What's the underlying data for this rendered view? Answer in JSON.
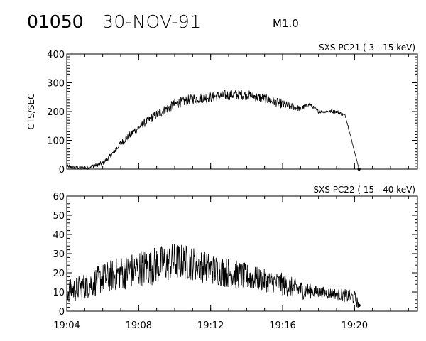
{
  "header": {
    "event_id": "01050",
    "date": "30-NOV-91",
    "flare_class": "M1.0"
  },
  "chart_data": [
    {
      "type": "line",
      "title": "SXS PC21  (  3 - 15 keV)",
      "ylabel": "CTS/SEC",
      "xlabel": "",
      "ylim": [
        0,
        400
      ],
      "yticks": [
        0,
        100,
        200,
        300,
        400
      ],
      "xlim": [
        "19:04",
        "19:23:30"
      ],
      "xticks": [
        "19:04",
        "19:08",
        "19:12",
        "19:16",
        "19:20"
      ],
      "grid": false,
      "series": [
        {
          "x": [
            "19:04",
            "19:05",
            "19:06",
            "19:06:30",
            "19:07",
            "19:08",
            "19:09",
            "19:10",
            "19:11",
            "19:12",
            "19:13",
            "19:14",
            "19:15",
            "19:16",
            "19:17",
            "19:17:30",
            "19:18",
            "19:19",
            "19:19:30",
            "19:20",
            "19:20:15"
          ],
          "values": [
            8,
            3,
            20,
            50,
            90,
            145,
            190,
            225,
            245,
            250,
            258,
            258,
            245,
            225,
            210,
            225,
            200,
            200,
            185,
            60,
            0
          ],
          "noise": [
            8,
            6,
            8,
            10,
            12,
            14,
            16,
            18,
            18,
            18,
            18,
            18,
            16,
            16,
            10,
            6,
            6,
            6,
            6,
            0,
            0
          ]
        }
      ]
    },
    {
      "type": "line",
      "title": "SXS PC22  ( 15 - 40 keV)",
      "ylabel": "",
      "xlabel": "",
      "ylim": [
        0,
        60
      ],
      "yticks": [
        0,
        10,
        20,
        30,
        40,
        50,
        60
      ],
      "xlim": [
        "19:04",
        "19:23:30"
      ],
      "xticks": [
        "19:04",
        "19:08",
        "19:12",
        "19:16",
        "19:20"
      ],
      "grid": false,
      "series": [
        {
          "x": [
            "19:04",
            "19:05",
            "19:06",
            "19:07",
            "19:08",
            "19:09",
            "19:10",
            "19:11",
            "19:12",
            "19:13",
            "19:14",
            "19:15",
            "19:16",
            "19:17",
            "19:18",
            "19:19",
            "19:20",
            "19:20:15"
          ],
          "values": [
            10,
            13,
            17,
            20,
            22,
            24,
            26,
            25,
            22,
            20,
            18,
            16,
            14,
            11,
            10,
            9,
            7,
            3
          ],
          "noise": [
            6,
            7,
            8,
            9,
            10,
            10,
            10,
            9,
            8,
            8,
            7,
            6,
            6,
            5,
            3,
            3,
            4,
            2
          ]
        }
      ]
    }
  ]
}
